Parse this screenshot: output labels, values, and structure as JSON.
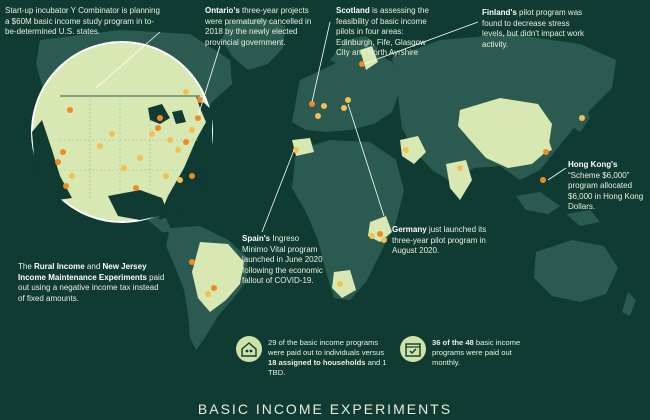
{
  "colors": {
    "background": "#0f3b33",
    "land": "#2b5b50",
    "highlight_land": "#d8e8b2",
    "dot_orange": "#f08a24",
    "dot_yellow": "#f2c14e",
    "line": "#ffffff"
  },
  "annotations": {
    "ycombinator": {
      "text": "Start-up incubator Y Combinator is planning a $60M basic income study program in to-be-determined U.S. states."
    },
    "ontario": {
      "bold": "Ontario's",
      "text": " three-year projects were prematurely cancelled in 2018 by the newly elected provincial government."
    },
    "scotland": {
      "bold": "Scotland",
      "text": " is assessing the feasibility of basic income pilots in four areas: Edinburgh, Fife, Glasgow City and North Ayrshire"
    },
    "finland": {
      "bold": "Finland's",
      "text": " pilot program was found to decrease stress levels, but didn't impact work activity."
    },
    "hongkong": {
      "bold": "Hong Kong's",
      "text": " “Scheme $6,000” program allocated $6,000 in Hong Kong Dollars."
    },
    "spain": {
      "bold": "Spain's",
      "text": " Ingreso Minimo Vital program launched in June 2020 following the economic fallout of COVID-19."
    },
    "germany": {
      "bold": "Germany",
      "text": " just launched its three-year pilot program in August 2020."
    },
    "rural": {
      "pre": "The ",
      "bold1": "Rural Income",
      "mid": " and ",
      "bold2": "New Jersey Income Maintenance Experiments",
      "post": " paid out using a negative income tax instead of fixed amounts."
    }
  },
  "stats": {
    "households": {
      "pre": "29 of the basic income programs were paid out to individuals versus ",
      "bold": "18 assigned to households",
      "post": " and 1 TBD."
    },
    "monthly": {
      "bold": "36 of the 48",
      "post": " basic income programs were paid out monthly."
    }
  },
  "footer": {
    "title": "BASIC INCOME EXPERIMENTS"
  },
  "icons": [
    "house-people-icon",
    "calendar-icon"
  ]
}
